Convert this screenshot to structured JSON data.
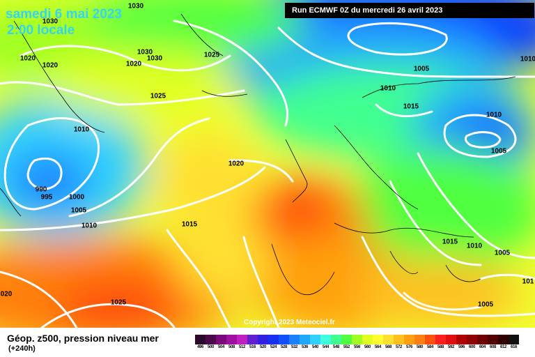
{
  "header": {
    "date": "samedi 6 mai 2023",
    "local_time": "2:00 locale",
    "run": "Run ECMWF 0Z du mercredi 26 avril 2023"
  },
  "copyright": "Copyright 2023 Meteociel.fr",
  "footer": {
    "parameter": "Géop. z500, pression niveau mer",
    "lead_time": "(+240h)"
  },
  "legend_scale": {
    "values": [
      "496",
      "500",
      "504",
      "508",
      "512",
      "516",
      "520",
      "524",
      "528",
      "532",
      "536",
      "540",
      "544",
      "548",
      "552",
      "556",
      "560",
      "564",
      "568",
      "572",
      "576",
      "580",
      "584",
      "588",
      "592",
      "596",
      "600",
      "604",
      "608",
      "612",
      "616"
    ],
    "colors": [
      "#2a0a2a",
      "#4a0a4a",
      "#7a0a7a",
      "#a010a0",
      "#c020c0",
      "#6020d0",
      "#3020e0",
      "#1830f0",
      "#1050ff",
      "#1a80ff",
      "#20a8ff",
      "#30d0ff",
      "#40ffe0",
      "#40ff90",
      "#50ff40",
      "#a0ff20",
      "#e0ff20",
      "#ffff30",
      "#ffe030",
      "#ffc020",
      "#ffa010",
      "#ff8010",
      "#ff5010",
      "#ff2020",
      "#e01010",
      "#b00000",
      "#900000",
      "#700000",
      "#500000",
      "#300000",
      "#101010"
    ]
  },
  "isobar_labels": [
    {
      "text": "1030"
    },
    {
      "text": "1030"
    },
    {
      "text": "1020"
    },
    {
      "text": "1020"
    },
    {
      "text": "1030"
    },
    {
      "text": "1030"
    },
    {
      "text": "1025"
    },
    {
      "text": "1020"
    },
    {
      "text": "1025"
    },
    {
      "text": "1010"
    },
    {
      "text": "990"
    },
    {
      "text": "995"
    },
    {
      "text": "1000"
    },
    {
      "text": "1005"
    },
    {
      "text": "1010"
    },
    {
      "text": "1015"
    },
    {
      "text": "1020"
    },
    {
      "text": "1005"
    },
    {
      "text": "1010"
    },
    {
      "text": "1015"
    },
    {
      "text": "1010"
    },
    {
      "text": "1005"
    },
    {
      "text": "1010"
    },
    {
      "text": "1015"
    },
    {
      "text": "1010"
    },
    {
      "text": "1005"
    },
    {
      "text": "1025"
    },
    {
      "text": "1005"
    },
    {
      "text": "020"
    },
    {
      "text": "101"
    }
  ]
}
